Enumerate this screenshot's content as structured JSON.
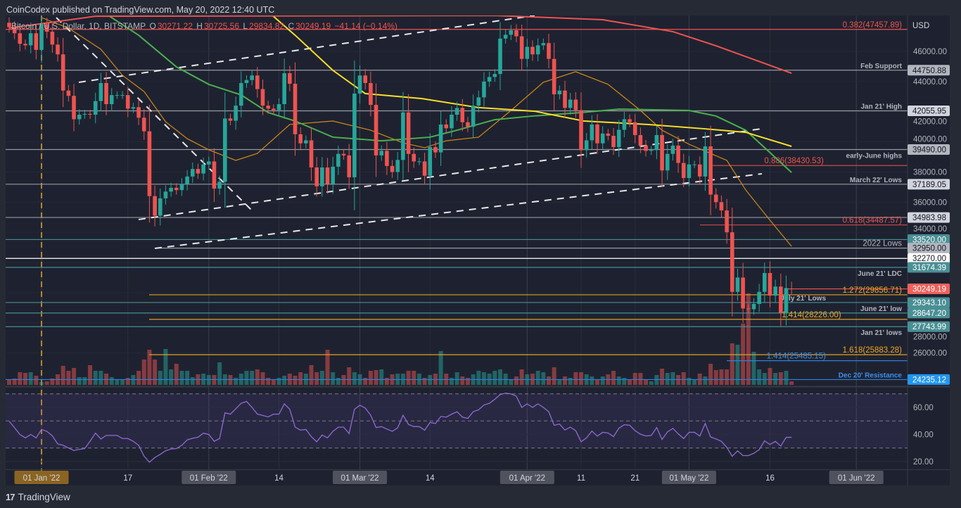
{
  "header": {
    "published": "CoinCodex published on TradingView.com, May 20, 2022 12:40 UTC",
    "symbol": "Bitcoin / U.S. Dollar, 1D, BITSTAMP",
    "open_label": "O",
    "open": "30271.22",
    "high_label": "H",
    "high": "30725.56",
    "low_label": "L",
    "low": "29834.82",
    "close_label": "C",
    "close": "30249.19",
    "change": "−41.14 (−0.14%)"
  },
  "footer": {
    "brand": "TradingView"
  },
  "colors": {
    "background": "#1e2230",
    "up": "#26a69a",
    "down": "#ef5350",
    "ma_orange": "#d48a17",
    "ma_green": "#4caf50",
    "ma_yellow": "#f7e02a",
    "ma_red": "#ef5350",
    "rsi": "#8e6bd6",
    "rsi_band": "#7e57c2",
    "trendline": "#e8e8e8"
  },
  "chart_data": [
    {
      "type": "candlestick",
      "title": "Bitcoin / U.S. Dollar, 1D, BITSTAMP",
      "currency_label": "USD",
      "y_ticks": [
        "46000.00",
        "44000.00",
        "42000.00",
        "40000.00",
        "38000.00",
        "36000.00",
        "34000.00",
        "28000.00",
        "26000.00"
      ],
      "x_ticks": [
        "01 Jan '22",
        "17",
        "01 Feb '22",
        "14",
        "01 Mar '22",
        "14",
        "01 Apr '22",
        "11",
        "21",
        "01 May '22",
        "16",
        "01 Jun '22"
      ],
      "ylim": [
        23830,
        48380
      ],
      "close": [
        47600,
        47200,
        46500,
        46400,
        47200,
        46100,
        47800,
        47300,
        46450,
        45800,
        43400,
        43050,
        41500,
        41800,
        41850,
        41800,
        42700,
        43900,
        42500,
        43100,
        43100,
        43100,
        42200,
        42300,
        41600,
        40700,
        36400,
        35100,
        36250,
        36700,
        36950,
        36800,
        37200,
        37700,
        38200,
        37900,
        38500,
        38700,
        36900,
        37350,
        41550,
        41400,
        42400,
        43900,
        44100,
        44400,
        43500,
        42400,
        42200,
        42100,
        42500,
        44550,
        43850,
        40500,
        39900,
        40100,
        38300,
        37050,
        38300,
        37200,
        38350,
        39200,
        39100,
        37650,
        43200,
        44400,
        43900,
        42450,
        39100,
        39400,
        38400,
        38000,
        38800,
        41950,
        39200,
        38700,
        38700,
        37750,
        39650,
        39300,
        41150,
        40900,
        41800,
        42250,
        41300,
        41000,
        42400,
        42950,
        44000,
        44300,
        44500,
        46850,
        47100,
        47400,
        47000,
        45500,
        46300,
        45800,
        46400,
        46550,
        45500,
        43150,
        43400,
        42250,
        42800,
        42100,
        39450,
        40100,
        41150,
        39900,
        40550,
        40400,
        39650,
        40800,
        41500,
        41300,
        40450,
        39750,
        39400,
        39450,
        40450,
        38100,
        39200,
        39750,
        38600,
        37600,
        38500,
        38500,
        37700,
        39700,
        36500,
        36000,
        35450,
        34000,
        30050,
        31000,
        28950,
        28900,
        29250,
        30050,
        31300,
        29800,
        30400,
        28650,
        30300,
        30249.19
      ],
      "last_bar": {
        "open": 30271.22,
        "high": 30725.56,
        "low": 29834.82,
        "close": 30249.19
      },
      "volume_relative": [
        8,
        9,
        18,
        17,
        18,
        13,
        4,
        5,
        9,
        15,
        27,
        20,
        24,
        11,
        11,
        28,
        20,
        20,
        16,
        11,
        8,
        8,
        10,
        14,
        20,
        36,
        50,
        36,
        20,
        51,
        22,
        30,
        20,
        20,
        11,
        15,
        16,
        14,
        14,
        32,
        15,
        14,
        10,
        16,
        20,
        20,
        22,
        18,
        10,
        8,
        10,
        13,
        16,
        13,
        18,
        16,
        28,
        18,
        20,
        50,
        18,
        10,
        14,
        25,
        18,
        15,
        10,
        20,
        21,
        22,
        10,
        15,
        16,
        16,
        20,
        20,
        16,
        10,
        14,
        16,
        48,
        16,
        10,
        18,
        12,
        10,
        15,
        20,
        18,
        16,
        20,
        22,
        16,
        8,
        12,
        22,
        15,
        16,
        20,
        18,
        12,
        25,
        8,
        12,
        10,
        18,
        18,
        15,
        12,
        8,
        12,
        15,
        20,
        12,
        10,
        8,
        17,
        17,
        8,
        5,
        14,
        23,
        17,
        18,
        14,
        18,
        10,
        8,
        16,
        12,
        30,
        21,
        22,
        22,
        59,
        57,
        87,
        130,
        47,
        22,
        17,
        24,
        17,
        18,
        20,
        5
      ],
      "moving_averages": [
        {
          "color_key": "ma_orange",
          "points": [
            [
              6,
              48240
            ],
            [
              11,
              47540
            ],
            [
              17,
              46140
            ],
            [
              21,
              44410
            ],
            [
              25,
              43340
            ],
            [
              29,
              41330
            ],
            [
              33,
              40210
            ],
            [
              37,
              39470
            ],
            [
              42,
              38770
            ],
            [
              46,
              39230
            ],
            [
              52,
              41150
            ],
            [
              60,
              41380
            ],
            [
              67,
              40770
            ],
            [
              73,
              39930
            ],
            [
              77,
              39610
            ],
            [
              81,
              40070
            ],
            [
              87,
              40310
            ],
            [
              93,
              42080
            ],
            [
              99,
              43950
            ],
            [
              105,
              44650
            ],
            [
              111,
              43810
            ],
            [
              117,
              42080
            ],
            [
              121,
              40770
            ],
            [
              126,
              39840
            ],
            [
              133,
              38770
            ],
            [
              136.5,
              36810
            ],
            [
              141,
              34800
            ],
            [
              145,
              33070
            ]
          ]
        },
        {
          "color_key": "ma_green",
          "points": [
            [
              18,
              48470
            ],
            [
              24,
              47070
            ],
            [
              31,
              44970
            ],
            [
              37,
              43810
            ],
            [
              43,
              43110
            ],
            [
              48,
              41940
            ],
            [
              53,
              41380
            ],
            [
              60,
              40310
            ],
            [
              69,
              40070
            ],
            [
              78,
              40310
            ],
            [
              83,
              40770
            ],
            [
              90,
              41470
            ],
            [
              97,
              41710
            ],
            [
              106,
              41940
            ],
            [
              113,
              42170
            ],
            [
              126,
              42080
            ],
            [
              131,
              41710
            ],
            [
              136.5,
              40770
            ],
            [
              145,
              37970
            ]
          ]
        },
        {
          "color_key": "ma_yellow",
          "points": [
            [
              48.5,
              48470
            ],
            [
              53,
              47070
            ],
            [
              60,
              44740
            ],
            [
              66,
              43200
            ],
            [
              76.5,
              42870
            ],
            [
              87,
              42270
            ],
            [
              97.4,
              42030
            ],
            [
              106.5,
              41380
            ],
            [
              118.3,
              41150
            ],
            [
              128.7,
              40870
            ],
            [
              136.5,
              40630
            ],
            [
              145,
              39700
            ]
          ]
        },
        {
          "color_key": "ma_red",
          "points": [
            [
              0,
              47540
            ],
            [
              16,
              48330
            ],
            [
              90,
              48380
            ],
            [
              110,
              48100
            ],
            [
              123,
              47310
            ],
            [
              131,
              46370
            ],
            [
              145,
              44550
            ]
          ]
        }
      ],
      "levels": [
        {
          "price": 47457.89,
          "label": "0.382(47457.89)",
          "color": "#ef5350",
          "label_color": "#ef5350",
          "pos": "above"
        },
        {
          "price": 44750.88,
          "label": "Feb Support",
          "color": "#9598a1",
          "label_color": "#b2b5be",
          "pos": "above",
          "tag": "44750.88",
          "tag_bg": "#b2b5be",
          "tag_fg": "#131722"
        },
        {
          "price": 42055.95,
          "label": "Jan 21' High",
          "color": "#9598a1",
          "label_color": "#b2b5be",
          "pos": "above",
          "tag": "42055.95",
          "tag_bg": "#d1d4dc",
          "tag_fg": "#131722"
        },
        {
          "price": 39490.0,
          "label": "early-June highs",
          "color": "#9598a1",
          "label_color": "#b2b5be",
          "pos": "below",
          "tag": "39490.00",
          "tag_bg": "#b2b5be",
          "tag_fg": "#131722"
        },
        {
          "price": 38430.53,
          "label": "0.886(38430.53)",
          "color": "#c94b48",
          "label_color": "#ef5350",
          "pos": "above"
        },
        {
          "price": 37189.05,
          "label": "March 22' Lows",
          "color": "#9598a1",
          "label_color": "#b2b5be",
          "pos": "above",
          "tag": "37189.05",
          "tag_bg": "#d1d4dc",
          "tag_fg": "#131722"
        },
        {
          "price": 34983.98,
          "label": "",
          "color": "#9598a1",
          "label_color": "#b2b5be",
          "pos": "above",
          "tag": "34983.98",
          "tag_bg": "#d1d4dc",
          "tag_fg": "#131722"
        },
        {
          "price": 34487.57,
          "label": "0.618(34487.57)",
          "color": "#c94b48",
          "label_color": "#ef5350",
          "pos": "above"
        },
        {
          "price": 33520.0,
          "label": "",
          "color": "#4a8f95",
          "label_color": "#b2b5be",
          "pos": "above",
          "tag": "33520.00",
          "tag_bg": "#4a8f95",
          "tag_fg": "#ffffff"
        },
        {
          "price": 32950.0,
          "label": "2022 Lows",
          "color": "#9598a1",
          "label_color": "#b2b5be",
          "pos": "above",
          "tag": "32950.00",
          "tag_bg": "#b2b5be",
          "tag_fg": "#131722"
        },
        {
          "price": 32270.0,
          "label": "",
          "color": "#ffffff",
          "label_color": "#b2b5be",
          "pos": "above",
          "tag": "32270.00",
          "tag_bg": "#ffffff",
          "tag_fg": "#131722"
        },
        {
          "price": 31674.39,
          "label": "June 21' LDC",
          "color": "#4a8f95",
          "label_color": "#b2b5be",
          "pos": "below",
          "tag": "31674.39",
          "tag_bg": "#4a8f95",
          "tag_fg": "#ffffff"
        },
        {
          "price": 30249.19,
          "label": "",
          "color": "#ef5350",
          "label_color": "#ef5350",
          "pos": "above",
          "tag": "30249.19",
          "tag_bg": "#f0615a",
          "tag_fg": "#ffffff",
          "short": true
        },
        {
          "price": 29856.71,
          "label": "1.272(29856.71)",
          "color": "#e0a026",
          "label_color": "#f0a820",
          "pos": "above"
        },
        {
          "price": 29343.1,
          "label": "July 21' Lows",
          "color": "#4a8f95",
          "label_color": "#b2b5be",
          "pos": "above",
          "tag": "29343.10",
          "tag_bg": "#4a8f95",
          "tag_fg": "#ffffff"
        },
        {
          "price": 28647.2,
          "label": "June 21' low",
          "color": "#4a8f95",
          "label_color": "#b2b5be",
          "pos": "above",
          "tag": "28647.20",
          "tag_bg": "#4a8f95",
          "tag_fg": "#ffffff"
        },
        {
          "price": 28226.0,
          "label": "1.414(28226.00)",
          "color": "#e0a026",
          "label_color": "#f0a820",
          "pos": "above"
        },
        {
          "price": 27743.99,
          "label": "Jan 21' lows",
          "color": "#4a8f95",
          "label_color": "#b2b5be",
          "pos": "below",
          "tag": "27743.99",
          "tag_bg": "#4a8f95",
          "tag_fg": "#ffffff"
        },
        {
          "price": 25883.28,
          "label": "1.618(25883.28)",
          "color": "#e0a026",
          "label_color": "#f0a820",
          "pos": "above"
        },
        {
          "price": 25485.15,
          "label": "1.414(25485.15)",
          "color": "#2f7fd9",
          "label_color": "#3d8fe8",
          "pos": "above"
        },
        {
          "price": 24235.12,
          "label": "Dec 20' Resistance",
          "color": "#2f7fd9",
          "label_color": "#3d8fe8",
          "pos": "above",
          "tag": "24235.12",
          "tag_bg": "#2196f3",
          "tag_fg": "#ffffff"
        }
      ]
    },
    {
      "type": "line",
      "title": "",
      "y_ticks": [
        "60.00",
        "40.00",
        "20.00"
      ],
      "bands": [
        30,
        50,
        70
      ],
      "ylim": [
        15,
        75
      ],
      "values": [
        49.8,
        45,
        40,
        37.5,
        40,
        37.5,
        43.7,
        42.3,
        39,
        33,
        32,
        30,
        28.2,
        29,
        29.6,
        35,
        41,
        36.7,
        39.3,
        39.3,
        39.3,
        37,
        37,
        35,
        32,
        24,
        19.5,
        23,
        25.3,
        28,
        29.3,
        29.6,
        32,
        36,
        37.2,
        38,
        41,
        40,
        35,
        37,
        56,
        55,
        59,
        63,
        64.4,
        60,
        55.1,
        54,
        53,
        55,
        55,
        62.6,
        58.6,
        45.4,
        43.2,
        43.7,
        38.4,
        34.6,
        39.6,
        37.5,
        42.3,
        45.4,
        45.4,
        40.7,
        58.6,
        61.6,
        59.5,
        54.2,
        45.1,
        45.8,
        44,
        42.3,
        44.9,
        54.2,
        47.5,
        45.8,
        45.8,
        43.2,
        48.9,
        48.1,
        53.3,
        52.8,
        55,
        56.8,
        52.8,
        51.9,
        56.8,
        58.2,
        61.8,
        63,
        66,
        69.5,
        70.5,
        70,
        68.2,
        60,
        62.6,
        60,
        62.6,
        60,
        56.8,
        46.8,
        47.7,
        43.3,
        45.4,
        42.8,
        34.6,
        37.5,
        42.5,
        38.8,
        41.6,
        41.1,
        38.4,
        44.6,
        47.2,
        46.8,
        42.8,
        40.2,
        38.9,
        39.3,
        45.1,
        36.3,
        41.9,
        44.5,
        40.5,
        37,
        41.6,
        41.6,
        38.8,
        48.1,
        38.1,
        36.7,
        34.9,
        30.5,
        23.9,
        27.9,
        24.4,
        24.4,
        26.1,
        28.8,
        35.3,
        32.6,
        34.9,
        31.4,
        37.9,
        37.9
      ]
    }
  ]
}
